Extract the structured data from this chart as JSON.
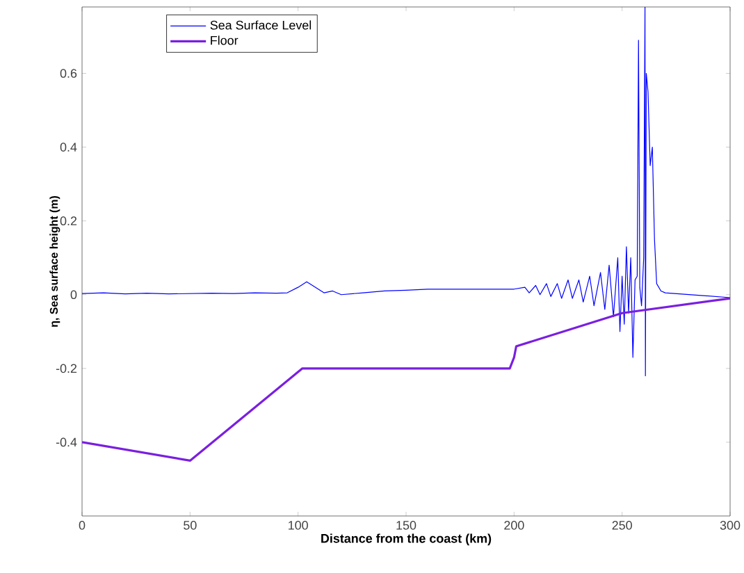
{
  "chart_data": {
    "type": "line",
    "xlabel": "Distance from the coast (km)",
    "ylabel": "η, Sea surface height (m)",
    "xlim": [
      0,
      300
    ],
    "ylim": [
      -0.6,
      0.78
    ],
    "xticks": [
      0,
      50,
      100,
      150,
      200,
      250,
      300
    ],
    "yticks": [
      -0.4,
      -0.2,
      0,
      0.2,
      0.4,
      0.6
    ],
    "legend": "top left",
    "grid": false,
    "series": [
      {
        "name": "Sea Surface Level",
        "color": "#0000ff",
        "x": [
          0,
          10,
          20,
          30,
          40,
          50,
          60,
          70,
          80,
          90,
          95,
          100,
          104,
          108,
          112,
          116,
          120,
          130,
          140,
          150,
          160,
          170,
          180,
          190,
          200,
          205,
          207,
          210,
          212,
          215,
          217,
          220,
          222,
          225,
          227,
          230,
          232,
          235,
          237,
          240,
          242,
          244,
          246,
          248,
          249,
          250,
          251,
          252,
          253,
          254,
          255,
          256,
          257,
          257.6,
          258.2,
          259,
          260,
          260.6,
          260.8,
          261.2,
          262,
          263,
          264,
          265,
          266,
          268,
          270,
          300
        ],
        "values": [
          0.003,
          0.005,
          0.002,
          0.004,
          0.002,
          0.003,
          0.004,
          0.003,
          0.005,
          0.004,
          0.005,
          0.02,
          0.035,
          0.02,
          0.005,
          0.01,
          0.0,
          0.005,
          0.01,
          0.012,
          0.015,
          0.015,
          0.015,
          0.015,
          0.015,
          0.02,
          0.005,
          0.025,
          0.0,
          0.03,
          -0.005,
          0.03,
          -0.01,
          0.04,
          -0.01,
          0.04,
          -0.02,
          0.05,
          -0.03,
          0.06,
          -0.04,
          0.08,
          -0.06,
          0.1,
          -0.1,
          0.05,
          -0.08,
          0.13,
          -0.05,
          0.1,
          -0.17,
          0.04,
          0.05,
          0.69,
          0.02,
          -0.03,
          0.1,
          0.78,
          -0.22,
          0.6,
          0.55,
          0.35,
          0.4,
          0.15,
          0.03,
          0.01,
          0.005,
          -0.008
        ]
      },
      {
        "name": "Floor",
        "color": "#7a1fe0",
        "x": [
          0,
          50,
          102,
          198,
          200,
          201,
          250,
          300
        ],
        "values": [
          -0.4,
          -0.45,
          -0.2,
          -0.2,
          -0.17,
          -0.14,
          -0.05,
          -0.01
        ]
      }
    ]
  }
}
